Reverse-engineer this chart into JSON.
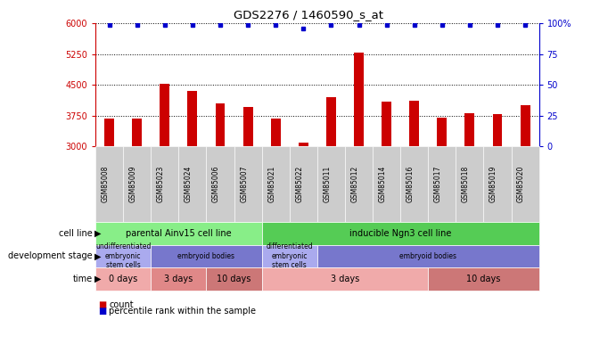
{
  "title": "GDS2276 / 1460590_s_at",
  "samples": [
    "GSM85008",
    "GSM85009",
    "GSM85023",
    "GSM85024",
    "GSM85006",
    "GSM85007",
    "GSM85021",
    "GSM85022",
    "GSM85011",
    "GSM85012",
    "GSM85014",
    "GSM85016",
    "GSM85017",
    "GSM85018",
    "GSM85019",
    "GSM85020"
  ],
  "counts": [
    3680,
    3670,
    4530,
    4350,
    4050,
    3950,
    3670,
    3090,
    4200,
    5280,
    4100,
    4120,
    3700,
    3800,
    3790,
    4000
  ],
  "percentile_ranks": [
    99,
    99,
    99,
    99,
    99,
    99,
    99,
    96,
    99,
    99,
    99,
    99,
    99,
    99,
    99,
    99
  ],
  "bar_color": "#cc0000",
  "dot_color": "#0000cc",
  "ylim_left": [
    3000,
    6000
  ],
  "ylim_right": [
    0,
    100
  ],
  "yticks_left": [
    3000,
    3750,
    4500,
    5250,
    6000
  ],
  "yticks_right": [
    0,
    25,
    50,
    75,
    100
  ],
  "grid_lines": [
    3750,
    4500,
    5250
  ],
  "cell_line_labels": [
    {
      "text": "parental Ainv15 cell line",
      "start": 0,
      "end": 6,
      "color": "#88ee88"
    },
    {
      "text": "inducible Ngn3 cell line",
      "start": 6,
      "end": 16,
      "color": "#55cc55"
    }
  ],
  "dev_stage_labels": [
    {
      "text": "undifferentiated\nembryonic\nstem cells",
      "start": 0,
      "end": 2,
      "color": "#aaaaee"
    },
    {
      "text": "embryoid bodies",
      "start": 2,
      "end": 6,
      "color": "#7777cc"
    },
    {
      "text": "differentiated\nembryonic\nstem cells",
      "start": 6,
      "end": 8,
      "color": "#aaaaee"
    },
    {
      "text": "embryoid bodies",
      "start": 8,
      "end": 16,
      "color": "#7777cc"
    }
  ],
  "time_labels": [
    {
      "text": "0 days",
      "start": 0,
      "end": 2,
      "color": "#f0aaaa"
    },
    {
      "text": "3 days",
      "start": 2,
      "end": 4,
      "color": "#e08888"
    },
    {
      "text": "10 days",
      "start": 4,
      "end": 6,
      "color": "#cc7777"
    },
    {
      "text": "3 days",
      "start": 6,
      "end": 12,
      "color": "#f0aaaa"
    },
    {
      "text": "10 days",
      "start": 12,
      "end": 16,
      "color": "#cc7777"
    }
  ],
  "legend_count_color": "#cc0000",
  "legend_dot_color": "#0000cc",
  "row_labels": [
    "cell line",
    "development stage",
    "time"
  ],
  "xtick_bg": "#cccccc",
  "plot_bg": "#ffffff"
}
